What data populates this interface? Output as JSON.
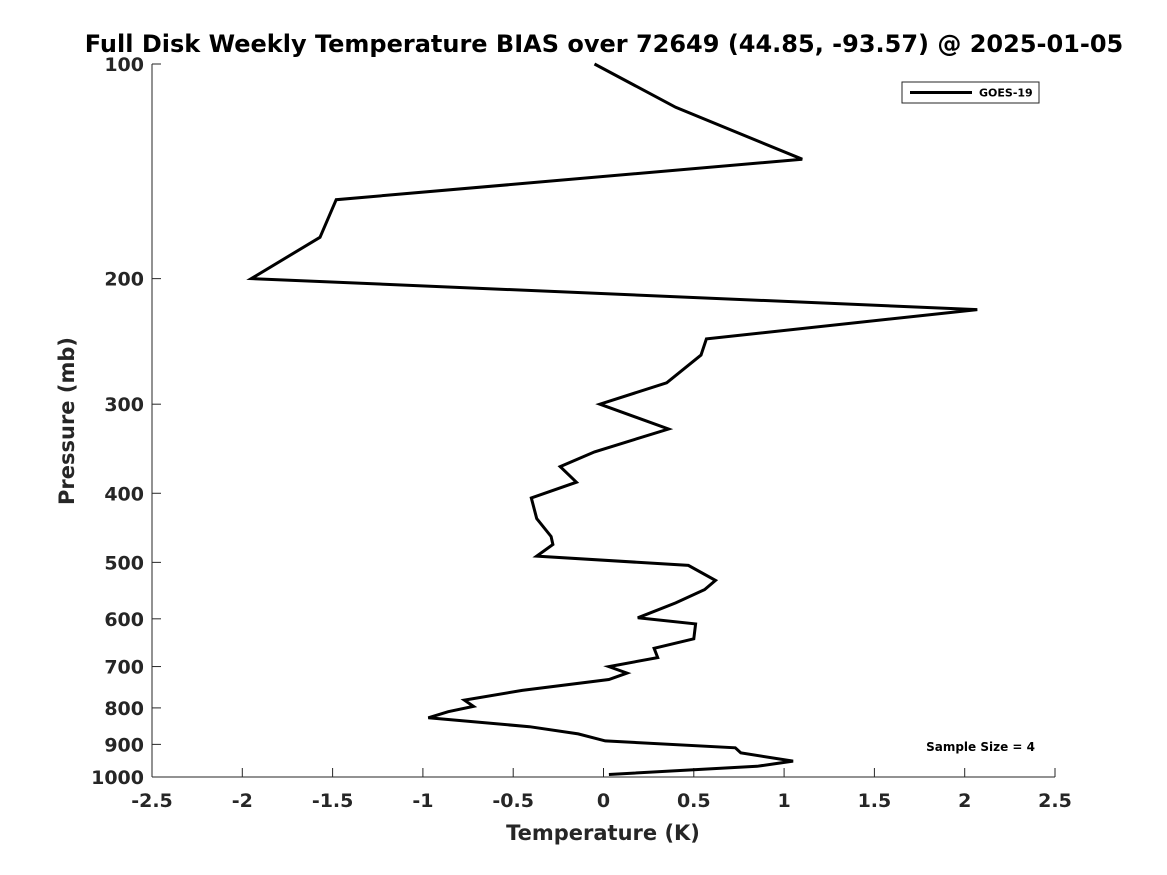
{
  "chart_data": {
    "type": "line",
    "title": "Full Disk Weekly Temperature BIAS over 72649 (44.85, -93.57) @ 2025-01-05",
    "xlabel": "Temperature (K)",
    "ylabel": "Pressure (mb)",
    "xlim": [
      -2.5,
      2.5
    ],
    "ylim": [
      1000,
      100
    ],
    "y_scale": "log",
    "y_reversed": true,
    "x_ticks": [
      -2.5,
      -2,
      -1.5,
      -1,
      -0.5,
      0,
      0.5,
      1,
      1.5,
      2,
      2.5
    ],
    "x_tick_labels": [
      "-2.5",
      "-2",
      "-1.5",
      "-1",
      "-0.5",
      "0",
      "0.5",
      "1",
      "1.5",
      "2",
      "2.5"
    ],
    "y_ticks": [
      100,
      200,
      300,
      400,
      500,
      600,
      700,
      800,
      900,
      1000
    ],
    "y_tick_labels": [
      "100",
      "200",
      "300",
      "400",
      "500",
      "600",
      "700",
      "800",
      "900",
      "1000"
    ],
    "grid": false,
    "legend": "top-right",
    "annotation": "Sample Size = 4",
    "series": [
      {
        "name": "GOES-19",
        "color": "#000000",
        "points": [
          [
            -0.05,
            100
          ],
          [
            0.4,
            115
          ],
          [
            1.1,
            136
          ],
          [
            -1.48,
            155
          ],
          [
            -1.57,
            175
          ],
          [
            -1.95,
            200
          ],
          [
            2.07,
            221
          ],
          [
            0.57,
            243
          ],
          [
            0.54,
            256
          ],
          [
            0.35,
            280
          ],
          [
            -0.02,
            300
          ],
          [
            0.36,
            325
          ],
          [
            -0.05,
            350
          ],
          [
            -0.24,
            367
          ],
          [
            -0.15,
            386
          ],
          [
            -0.4,
            406
          ],
          [
            -0.37,
            434
          ],
          [
            -0.29,
            460
          ],
          [
            -0.28,
            472
          ],
          [
            -0.37,
            490
          ],
          [
            0.47,
            505
          ],
          [
            0.62,
            530
          ],
          [
            0.56,
            546
          ],
          [
            0.4,
            570
          ],
          [
            0.19,
            598
          ],
          [
            0.51,
            610
          ],
          [
            0.5,
            640
          ],
          [
            0.28,
            660
          ],
          [
            0.3,
            680
          ],
          [
            0.03,
            700
          ],
          [
            0.13,
            715
          ],
          [
            0.03,
            730
          ],
          [
            -0.45,
            756
          ],
          [
            -0.77,
            780
          ],
          [
            -0.72,
            796
          ],
          [
            -0.86,
            810
          ],
          [
            -0.97,
            826
          ],
          [
            -0.41,
            850
          ],
          [
            -0.14,
            870
          ],
          [
            0.01,
            890
          ],
          [
            0.73,
            910
          ],
          [
            0.76,
            925
          ],
          [
            1.05,
            950
          ],
          [
            0.85,
            966
          ],
          [
            0.03,
            992
          ]
        ]
      }
    ]
  }
}
